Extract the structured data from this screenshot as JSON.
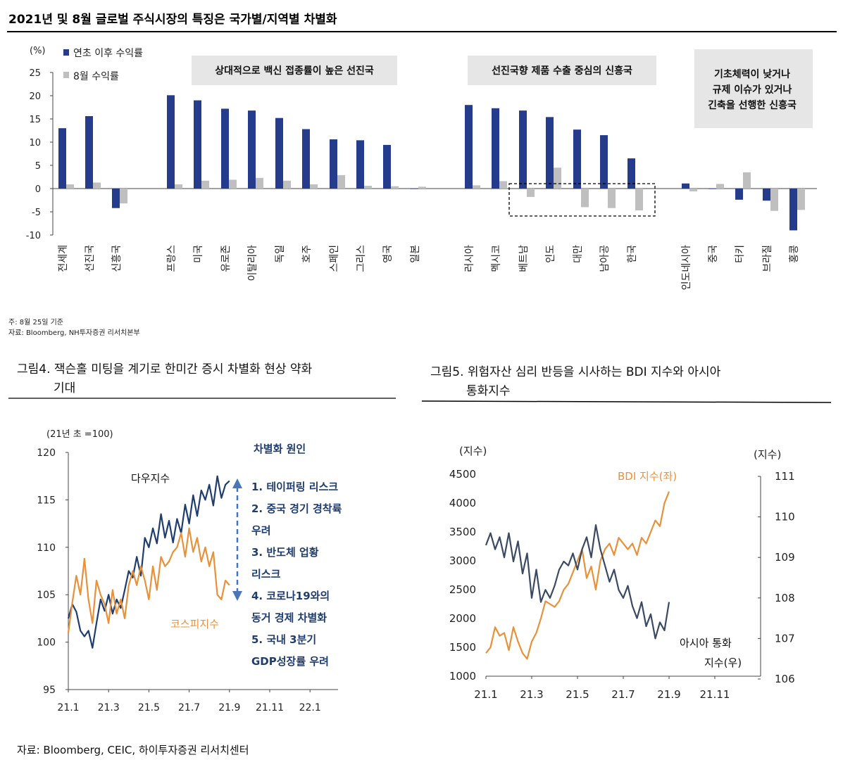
{
  "top": {
    "title": "2021년 및 8월 글로벌 주식시장의 특징은 국가별/지역별 차별화",
    "unit": "(%)",
    "legend": [
      "연초 이후 수익률",
      "8월 수익률"
    ],
    "groups": [
      "상대적으로 백신 접종률이 높은 선진국",
      "선진국향 제품 수출 중심의 신흥국",
      "기초체력이 낮거나",
      "규제 이슈가 있거나",
      "긴축을 선행한 신흥국"
    ],
    "note": "주: 8월 25일 기준",
    "source": "자료: Bloomberg, NH투자증권 리서치본부"
  },
  "left": {
    "title_line1": "그림4. 잭슨홀 미팅을 계기로 한미간 증시 차별화 현상 약화",
    "title_line2": "기대",
    "unit": "(21년 초 =100)",
    "dow_label": "다우지수",
    "kospi_label": "코스피지수",
    "reasons_title": "차별화 원인",
    "reasons": [
      "1. 테이퍼링 리스크",
      "2. 중국 경기 경착륙",
      "우려",
      "3. 반도체 업황",
      "리스크",
      "4. 코로나19와의",
      "동거 경제 차별화",
      "5. 국내 3분기",
      "GDP성장률 우려"
    ]
  },
  "right": {
    "title_line1": "그림5. 위험자산 심리 반등을 시사하는 BDI 지수와 아시아",
    "title_line2": "통화지수",
    "left_unit": "(지수)",
    "right_unit": "(지수)",
    "bdi_label": "BDI 지수(좌)",
    "asia_label_line1": "아시아 통화",
    "asia_label_line2": "지수(우)"
  },
  "footer": {
    "source": "자료: Bloomberg, CEIC, 하이투자증권 리서치센터"
  },
  "colors": {
    "navy": "#253c8c",
    "gray": "#bfbfbf",
    "dark_navy": "#1f3d6e",
    "orange": "#e8913a",
    "slate": "#3a4a63"
  },
  "chart_data": [
    {
      "type": "bar",
      "categories": [
        "전세계",
        "선진국",
        "신흥국",
        "프랑스",
        "미국",
        "유로존",
        "이탈리아",
        "독일",
        "호주",
        "스페인",
        "그리스",
        "영국",
        "일본",
        "러시아",
        "멕시코",
        "베트남",
        "인도",
        "대만",
        "남아공",
        "한국",
        "인도네시아",
        "중국",
        "터키",
        "브라질",
        "홍콩"
      ],
      "series": [
        {
          "name": "연초 이후 수익률",
          "values": [
            13.0,
            15.6,
            -4.2,
            20.1,
            19.0,
            17.2,
            16.8,
            15.2,
            12.8,
            10.6,
            10.4,
            9.4,
            -0.1,
            18.0,
            17.3,
            16.8,
            15.4,
            12.7,
            11.5,
            6.5,
            1.1,
            -0.1,
            -2.4,
            -2.6,
            -9.0
          ]
        },
        {
          "name": "8월 수익률",
          "values": [
            0.9,
            1.3,
            -3.2,
            0.9,
            1.7,
            1.9,
            2.3,
            1.7,
            0.9,
            2.9,
            0.6,
            0.5,
            0.4,
            0.7,
            1.6,
            -1.8,
            4.5,
            -4.0,
            -4.2,
            -4.7,
            -0.6,
            1.0,
            3.5,
            -4.8,
            -4.6
          ]
        }
      ],
      "ylim": [
        -10,
        25
      ],
      "yticks": [
        25,
        20,
        15,
        10,
        5,
        0,
        -5,
        -10
      ]
    },
    {
      "type": "line",
      "x_ticks": [
        "21.1",
        "21.3",
        "21.5",
        "21.7",
        "21.9",
        "21.11",
        "22.1"
      ],
      "ylim": [
        95,
        120
      ],
      "yticks": [
        120,
        115,
        110,
        105,
        100,
        95
      ],
      "series": [
        {
          "name": "다우지수",
          "x_month": [
            1.0,
            1.2,
            1.4,
            1.6,
            1.8,
            2.0,
            2.2,
            2.4,
            2.6,
            2.8,
            3.0,
            3.2,
            3.4,
            3.6,
            3.8,
            4.0,
            4.2,
            4.4,
            4.6,
            4.8,
            5.0,
            5.2,
            5.4,
            5.6,
            5.8,
            6.0,
            6.2,
            6.4,
            6.6,
            6.8,
            7.0,
            7.2,
            7.4,
            7.6,
            7.8,
            8.0,
            8.2,
            8.4,
            8.6,
            8.8,
            9.0
          ],
          "values": [
            102.5,
            104.0,
            103.2,
            101.2,
            100.6,
            101.2,
            99.4,
            102.0,
            104.5,
            103.3,
            105.0,
            103.0,
            104.5,
            103.6,
            105.5,
            107.5,
            106.8,
            109.0,
            107.0,
            111.0,
            110.0,
            112.0,
            110.4,
            113.5,
            111.0,
            112.8,
            110.5,
            113.0,
            111.5,
            114.5,
            112.5,
            115.5,
            113.3,
            116.0,
            115.0,
            116.6,
            114.4,
            117.5,
            115.2,
            116.6,
            117.0
          ]
        },
        {
          "name": "코스피지수",
          "x_month": [
            1.0,
            1.2,
            1.4,
            1.6,
            1.8,
            2.0,
            2.2,
            2.4,
            2.6,
            2.8,
            3.0,
            3.2,
            3.4,
            3.6,
            3.8,
            4.0,
            4.2,
            4.4,
            4.6,
            4.8,
            5.0,
            5.2,
            5.4,
            5.6,
            5.8,
            6.0,
            6.2,
            6.4,
            6.6,
            6.8,
            7.0,
            7.2,
            7.4,
            7.6,
            7.8,
            8.0,
            8.2,
            8.4,
            8.6,
            8.8,
            9.0
          ],
          "values": [
            101.0,
            104.2,
            107.0,
            105.0,
            108.8,
            104.5,
            102.0,
            106.5,
            105.0,
            104.0,
            102.0,
            105.5,
            103.0,
            104.5,
            102.5,
            106.0,
            107.5,
            106.0,
            108.0,
            106.5,
            104.5,
            108.0,
            105.5,
            109.0,
            108.0,
            108.5,
            109.5,
            110.0,
            111.5,
            109.0,
            112.0,
            109.5,
            111.0,
            108.5,
            110.0,
            108.0,
            109.5,
            105.0,
            104.5,
            106.5,
            106.0
          ]
        }
      ]
    },
    {
      "type": "line",
      "x_ticks": [
        "21.1",
        "21.3",
        "21.5",
        "21.7",
        "21.9",
        "21.11"
      ],
      "ylim_left": [
        1000,
        4500
      ],
      "yticks_left": [
        4500,
        4000,
        3500,
        3000,
        2500,
        2000,
        1500,
        1000
      ],
      "ylim_right": [
        106,
        111
      ],
      "yticks_right": [
        111,
        110,
        109,
        108,
        107,
        106
      ],
      "series": [
        {
          "name": "BDI 지수(좌)",
          "axis": "left",
          "x_month": [
            1.0,
            1.2,
            1.4,
            1.6,
            1.8,
            2.0,
            2.2,
            2.4,
            2.6,
            2.8,
            3.0,
            3.2,
            3.4,
            3.6,
            3.8,
            4.0,
            4.2,
            4.4,
            4.6,
            4.8,
            5.0,
            5.2,
            5.4,
            5.6,
            5.8,
            6.0,
            6.2,
            6.4,
            6.6,
            6.8,
            7.0,
            7.2,
            7.4,
            7.6,
            7.8,
            8.0,
            8.2,
            8.4,
            8.6,
            8.8,
            9.0
          ],
          "values": [
            1400,
            1500,
            1850,
            1700,
            1750,
            1450,
            1850,
            1600,
            1400,
            1300,
            1600,
            1750,
            2000,
            2300,
            2250,
            2200,
            2300,
            2500,
            2600,
            2800,
            3000,
            3200,
            2700,
            2900,
            2500,
            3000,
            3200,
            3300,
            3100,
            3400,
            3300,
            3200,
            3300,
            3100,
            3400,
            3300,
            3500,
            3700,
            3600,
            4000,
            4200
          ]
        },
        {
          "name": "아시아 통화 지수(우)",
          "axis": "right",
          "x_month": [
            1.0,
            1.2,
            1.4,
            1.6,
            1.8,
            2.0,
            2.2,
            2.4,
            2.6,
            2.8,
            3.0,
            3.2,
            3.4,
            3.6,
            3.8,
            4.0,
            4.2,
            4.4,
            4.6,
            4.8,
            5.0,
            5.2,
            5.4,
            5.6,
            5.8,
            6.0,
            6.2,
            6.4,
            6.6,
            6.8,
            7.0,
            7.2,
            7.4,
            7.6,
            7.8,
            8.0,
            8.2,
            8.4,
            8.6,
            8.8,
            9.0
          ],
          "values": [
            109.3,
            109.6,
            109.2,
            109.5,
            109.0,
            109.6,
            108.9,
            109.4,
            108.6,
            109.1,
            108.0,
            108.7,
            107.9,
            108.2,
            108.0,
            108.3,
            108.7,
            108.9,
            108.8,
            109.1,
            108.7,
            109.2,
            109.5,
            109.0,
            109.8,
            109.2,
            108.8,
            108.4,
            108.7,
            108.2,
            108.0,
            108.3,
            107.8,
            107.5,
            107.9,
            107.3,
            107.6,
            107.0,
            107.4,
            107.2,
            107.9
          ]
        }
      ]
    }
  ]
}
